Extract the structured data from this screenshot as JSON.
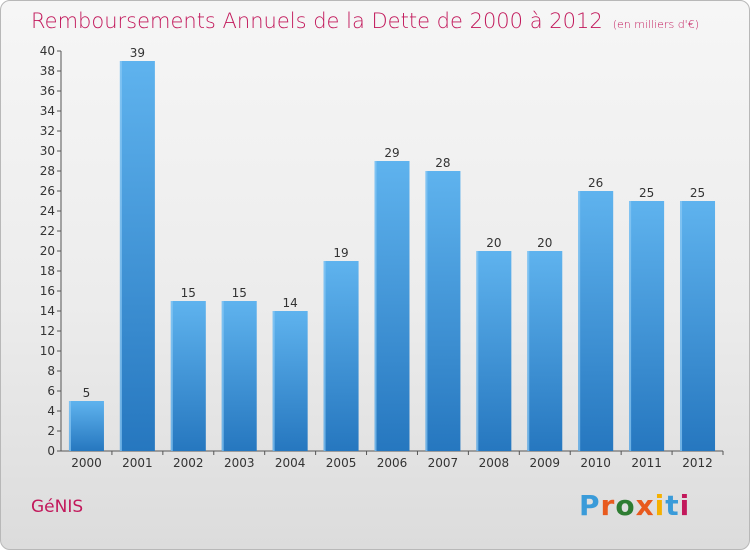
{
  "header": {
    "title": "Remboursements Annuels de la Dette de 2000 à 2012",
    "subtitle": "(en milliers d'€)"
  },
  "footer": {
    "commune": "GéNIS",
    "logo_text": "Proxiti",
    "logo_colors": [
      "#3a9bd9",
      "#e85a1e",
      "#2e7d32",
      "#e85a1e",
      "#f5b000",
      "#3a9bd9",
      "#c2185b"
    ]
  },
  "chart_data": {
    "type": "bar",
    "title": "Remboursements Annuels de la Dette de 2000 à 2012",
    "subtitle": "(en milliers d'€)",
    "categories": [
      "2000",
      "2001",
      "2002",
      "2003",
      "2004",
      "2005",
      "2006",
      "2007",
      "2008",
      "2009",
      "2010",
      "2011",
      "2012"
    ],
    "values": [
      5,
      39,
      15,
      15,
      14,
      19,
      29,
      28,
      20,
      20,
      26,
      25,
      25
    ],
    "ylim": [
      0,
      40
    ],
    "ytick_step": 2,
    "grid": false,
    "bar_color": "#3d9ae0",
    "xlabel": "",
    "ylabel": ""
  }
}
